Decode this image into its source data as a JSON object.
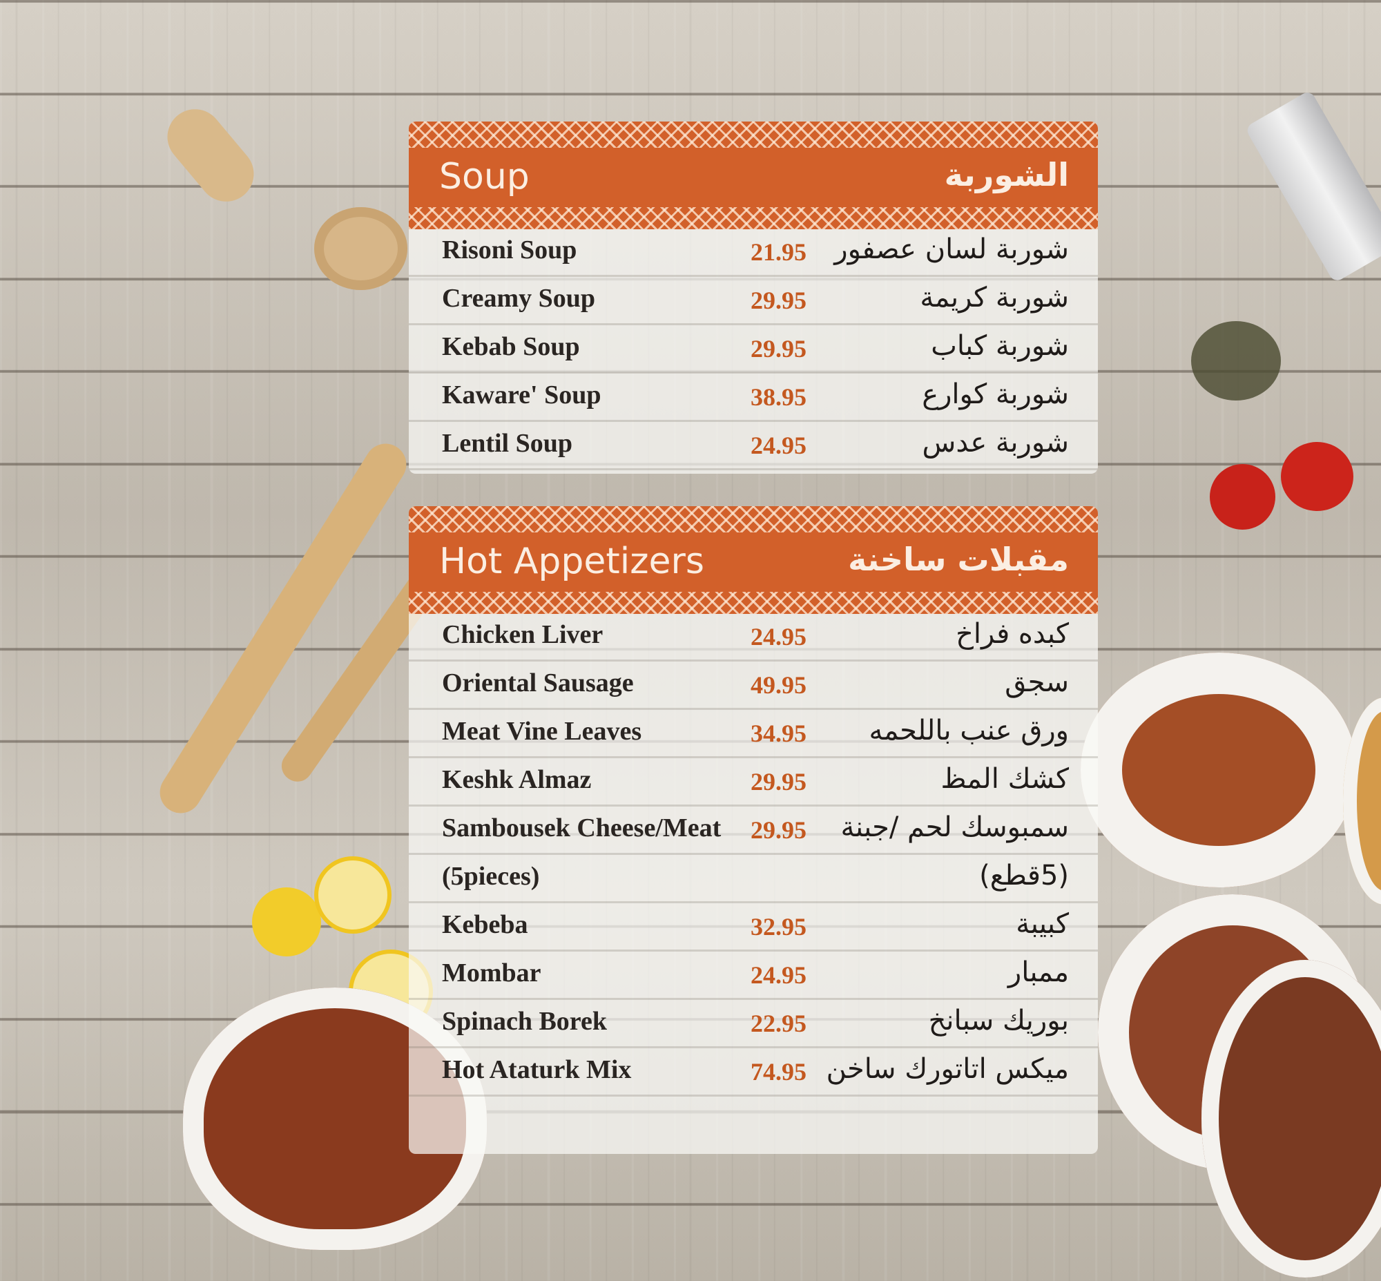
{
  "sections": [
    {
      "title_en": "Soup",
      "title_ar": "الشوربة",
      "items": [
        {
          "en": "Risoni Soup",
          "price": "21.95",
          "ar": "شوربة لسان عصفور"
        },
        {
          "en": "Creamy Soup",
          "price": "29.95",
          "ar": "شوربة كريمة"
        },
        {
          "en": "Kebab Soup",
          "price": "29.95",
          "ar": "شوربة كباب"
        },
        {
          "en": "Kaware' Soup",
          "price": "38.95",
          "ar": "شوربة كوارع"
        },
        {
          "en": "Lentil Soup",
          "price": "24.95",
          "ar": "شوربة عدس"
        }
      ]
    },
    {
      "title_en": "Hot Appetizers",
      "title_ar": "مقبلات ساخنة",
      "items": [
        {
          "en": "Chicken Liver",
          "price": "24.95",
          "ar": "كبده فراخ"
        },
        {
          "en": "Oriental Sausage",
          "price": "49.95",
          "ar": "سجق"
        },
        {
          "en": "Meat Vine Leaves",
          "price": "34.95",
          "ar": "ورق عنب باللحمه"
        },
        {
          "en": "Keshk Almaz",
          "price": "29.95",
          "ar": "كشك المظ"
        },
        {
          "en": "Sambousek Cheese/Meat",
          "price": "29.95",
          "ar": "سمبوسك لحم /جبنة"
        },
        {
          "en": "(5pieces)",
          "price": "",
          "ar": "(5قطع)"
        },
        {
          "en": "Kebeba",
          "price": "32.95",
          "ar": "كبيبة"
        },
        {
          "en": "Mombar",
          "price": "24.95",
          "ar": "ممبار"
        },
        {
          "en": "Spinach Borek",
          "price": "22.95",
          "ar": "بوريك سبانخ"
        },
        {
          "en": "Hot Ataturk Mix",
          "price": "74.95",
          "ar": "ميكس اتاتورك ساخن"
        }
      ]
    }
  ],
  "colors": {
    "accent": "#d2602a",
    "price": "#c4581f"
  }
}
